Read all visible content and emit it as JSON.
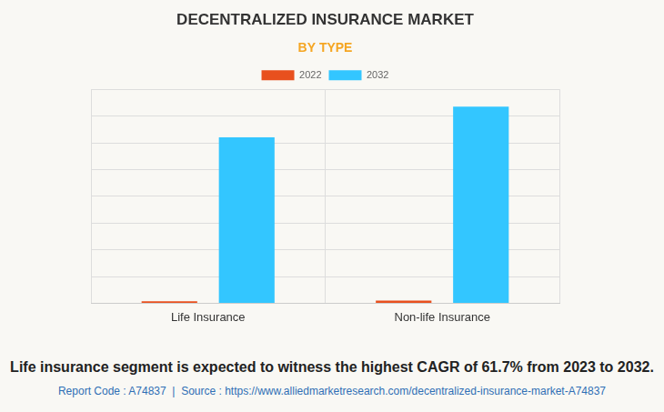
{
  "chart_data": {
    "type": "bar",
    "title": "DECENTRALIZED INSURANCE MARKET",
    "subtitle": "BY TYPE",
    "categories": [
      "Life Insurance",
      "Non-life Insurance"
    ],
    "series": [
      {
        "name": "2022",
        "color": "#e8501e",
        "values": [
          0.07,
          0.1
        ]
      },
      {
        "name": "2032",
        "color": "#33c6ff",
        "values": [
          6.2,
          7.35
        ]
      }
    ],
    "ylim": [
      0,
      8
    ],
    "yticks": [
      0,
      1,
      2,
      3,
      4,
      5,
      6,
      7,
      8
    ],
    "grid": true,
    "legend": "top",
    "tick_labels": "x",
    "caption": "Life insurance segment is expected to witness the highest CAGR of 61.7% from 2023 to 2032.",
    "source": "Report Code : A74837  |  Source : https://www.alliedmarketresearch.com/decentralized-insurance-market-A74837"
  }
}
